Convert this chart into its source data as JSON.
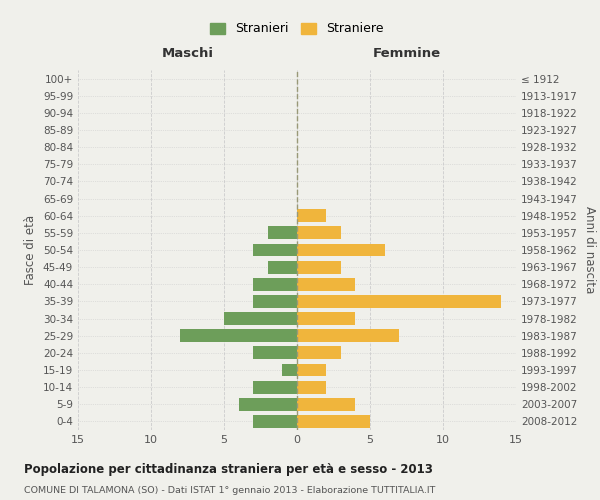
{
  "age_groups": [
    "100+",
    "95-99",
    "90-94",
    "85-89",
    "80-84",
    "75-79",
    "70-74",
    "65-69",
    "60-64",
    "55-59",
    "50-54",
    "45-49",
    "40-44",
    "35-39",
    "30-34",
    "25-29",
    "20-24",
    "15-19",
    "10-14",
    "5-9",
    "0-4"
  ],
  "birth_years": [
    "≤ 1912",
    "1913-1917",
    "1918-1922",
    "1923-1927",
    "1928-1932",
    "1933-1937",
    "1938-1942",
    "1943-1947",
    "1948-1952",
    "1953-1957",
    "1958-1962",
    "1963-1967",
    "1968-1972",
    "1973-1977",
    "1978-1982",
    "1983-1987",
    "1988-1992",
    "1993-1997",
    "1998-2002",
    "2003-2007",
    "2008-2012"
  ],
  "maschi": [
    0,
    0,
    0,
    0,
    0,
    0,
    0,
    0,
    0,
    2,
    3,
    2,
    3,
    3,
    5,
    8,
    3,
    1,
    3,
    4,
    3
  ],
  "femmine": [
    0,
    0,
    0,
    0,
    0,
    0,
    0,
    0,
    2,
    3,
    6,
    3,
    4,
    14,
    4,
    7,
    3,
    2,
    2,
    4,
    5
  ],
  "maschi_color": "#6d9e5a",
  "femmine_color": "#f0b53c",
  "title": "Popolazione per cittadinanza straniera per età e sesso - 2013",
  "subtitle": "COMUNE DI TALAMONA (SO) - Dati ISTAT 1° gennaio 2013 - Elaborazione TUTTITALIA.IT",
  "left_label": "Maschi",
  "right_label": "Femmine",
  "ylabel_left": "Fasce di età",
  "ylabel_right": "Anni di nascita",
  "legend_maschi": "Stranieri",
  "legend_femmine": "Straniere",
  "xlim": 15,
  "background_color": "#f0f0eb",
  "grid_color": "#cccccc",
  "bar_height": 0.75
}
